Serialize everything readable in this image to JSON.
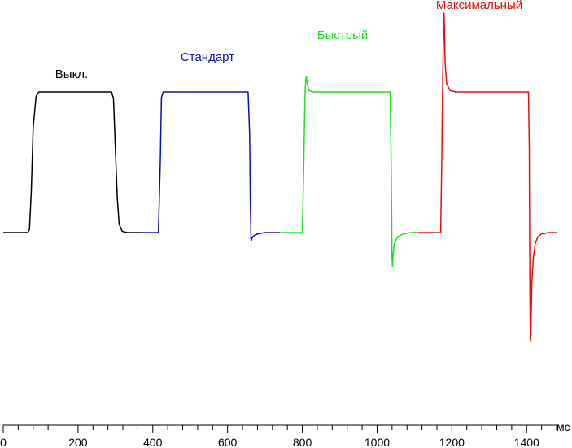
{
  "chart_data": {
    "type": "line",
    "x_unit": "мс",
    "xlim": [
      0,
      1480
    ],
    "x_ticks": [
      0,
      200,
      400,
      600,
      800,
      1000,
      1200,
      1400
    ],
    "x_minor_step": 40,
    "y_axis_visible": false,
    "grid": false,
    "series": [
      {
        "name": "Выкл.",
        "color": "#000000",
        "points": [
          [
            0,
            0
          ],
          [
            65,
            0
          ],
          [
            70,
            0.02
          ],
          [
            75,
            0.3
          ],
          [
            80,
            0.75
          ],
          [
            88,
            0.97
          ],
          [
            95,
            1
          ],
          [
            290,
            1
          ],
          [
            295,
            0.95
          ],
          [
            300,
            0.6
          ],
          [
            305,
            0.25
          ],
          [
            310,
            0.06
          ],
          [
            318,
            0.01
          ],
          [
            330,
            0
          ],
          [
            370,
            0
          ]
        ]
      },
      {
        "name": "Стандарт",
        "color": "#1010b0",
        "points": [
          [
            370,
            0
          ],
          [
            415,
            0
          ],
          [
            420,
            0.5
          ],
          [
            423,
            0.96
          ],
          [
            428,
            1
          ],
          [
            655,
            1
          ],
          [
            659,
            0.7
          ],
          [
            661,
            0.2
          ],
          [
            663,
            -0.06
          ],
          [
            667,
            -0.03
          ],
          [
            680,
            -0.01
          ],
          [
            700,
            0
          ],
          [
            740,
            0
          ]
        ]
      },
      {
        "name": "Быстрый",
        "color": "#22dd22",
        "points": [
          [
            740,
            0
          ],
          [
            800,
            0
          ],
          [
            804,
            0.5
          ],
          [
            807,
            0.97
          ],
          [
            809,
            1.08
          ],
          [
            811,
            1.11
          ],
          [
            813,
            1.06
          ],
          [
            818,
            1.01
          ],
          [
            830,
            1
          ],
          [
            1035,
            1
          ],
          [
            1037,
            0.6
          ],
          [
            1039,
            0.1
          ],
          [
            1040,
            -0.18
          ],
          [
            1041,
            -0.24
          ],
          [
            1043,
            -0.16
          ],
          [
            1046,
            -0.08
          ],
          [
            1055,
            -0.03
          ],
          [
            1070,
            -0.01
          ],
          [
            1090,
            0
          ],
          [
            1110,
            0
          ]
        ]
      },
      {
        "name": "Максимальный",
        "color": "#e01010",
        "points": [
          [
            1110,
            0
          ],
          [
            1170,
            0
          ],
          [
            1173,
            0.5
          ],
          [
            1175,
            1.0
          ],
          [
            1177,
            1.35
          ],
          [
            1178,
            1.53
          ],
          [
            1179,
            1.56
          ],
          [
            1180,
            1.45
          ],
          [
            1182,
            1.2
          ],
          [
            1186,
            1.06
          ],
          [
            1195,
            1.01
          ],
          [
            1210,
            1
          ],
          [
            1405,
            1
          ],
          [
            1407,
            0.6
          ],
          [
            1408,
            0.0
          ],
          [
            1409,
            -0.5
          ],
          [
            1410,
            -0.75
          ],
          [
            1411,
            -0.78
          ],
          [
            1412,
            -0.6
          ],
          [
            1414,
            -0.35
          ],
          [
            1418,
            -0.18
          ],
          [
            1423,
            -0.08
          ],
          [
            1430,
            -0.03
          ],
          [
            1440,
            -0.01
          ],
          [
            1460,
            0
          ],
          [
            1480,
            0
          ]
        ]
      }
    ]
  }
}
